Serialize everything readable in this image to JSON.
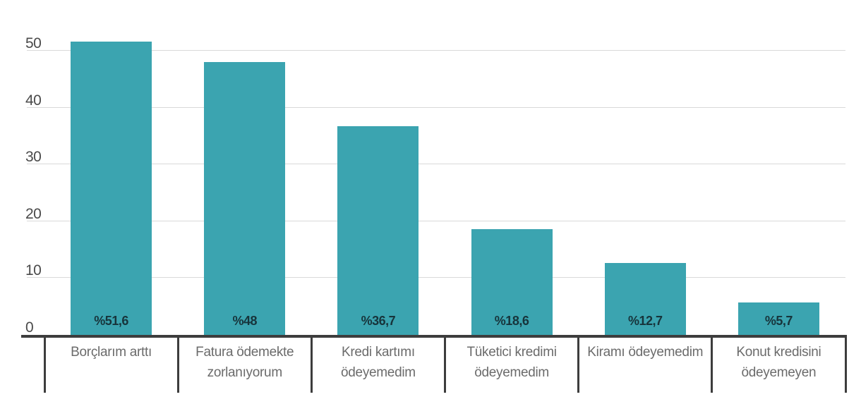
{
  "chart_data": {
    "type": "bar",
    "title": "",
    "xlabel": "",
    "ylabel": "",
    "categories": [
      "Borçlarım arttı",
      "Fatura ödemekte zorlanıyorum",
      "Kredi kartımı ödeyemedim",
      "Tüketici kredimi ödeyemedim",
      "Kiramı ödeyemedim",
      "Konut kredisini ödeyemeyen"
    ],
    "values": [
      51.6,
      48,
      36.7,
      18.6,
      12.7,
      5.7
    ],
    "value_labels": [
      "%51,6",
      "%48",
      "%36,7",
      "%18,6",
      "%12,7",
      "%5,7"
    ],
    "y_ticks": [
      0,
      10,
      20,
      30,
      40,
      50
    ],
    "ylim": [
      0,
      55
    ],
    "grid": true,
    "legend": false,
    "colors": {
      "bar": "#3BA4B0",
      "value_label": "#17343B",
      "axis": "#3D3D3D",
      "gridline": "#D9D9D9",
      "ytick_label": "#4A4A4A",
      "category_label": "#6B6B6B",
      "background": "#FFFFFF"
    }
  }
}
